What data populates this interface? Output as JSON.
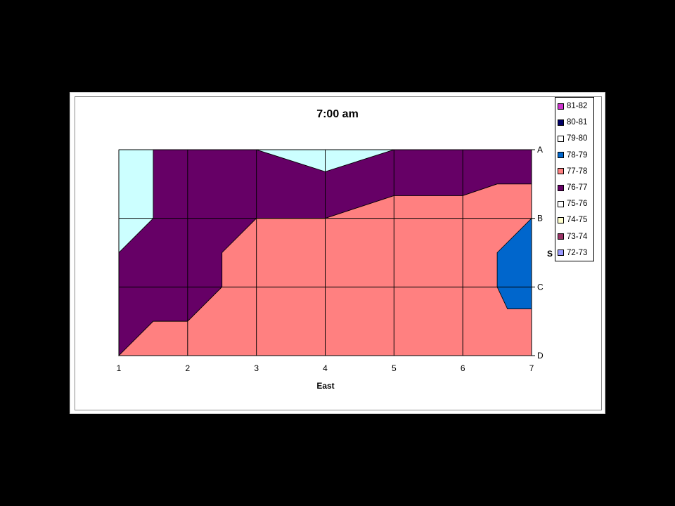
{
  "chart_data": {
    "type": "contour-area",
    "title": "7:00 am",
    "xlabel": "East",
    "ylabel": "S",
    "x_ticks": [
      "1",
      "2",
      "3",
      "4",
      "5",
      "6",
      "7"
    ],
    "y_ticks": [
      "A",
      "B",
      "C",
      "D"
    ],
    "xlim": [
      1,
      7
    ],
    "ylim": [
      "A",
      "D"
    ],
    "grid": true,
    "legend_position": "right",
    "legend": [
      {
        "label": "81-82",
        "color": "#cc33cc"
      },
      {
        "label": "80-81",
        "color": "#000066"
      },
      {
        "label": "79-80",
        "color": "#ffffff"
      },
      {
        "label": "78-79",
        "color": "#0066cc"
      },
      {
        "label": "77-78",
        "color": "#ff8080"
      },
      {
        "label": "76-77",
        "color": "#660066"
      },
      {
        "label": "75-76",
        "color": "#ffffff"
      },
      {
        "label": "74-75",
        "color": "#ffffcc"
      },
      {
        "label": "73-74",
        "color": "#993366"
      },
      {
        "label": "72-73",
        "color": "#9999ff"
      }
    ],
    "regions": [
      {
        "band": "76-77",
        "color": "#660066",
        "points": [
          [
            1,
            0.5
          ],
          [
            1.5,
            0
          ],
          [
            3,
            0
          ],
          [
            4,
            0.32
          ],
          [
            5,
            0
          ],
          [
            7,
            0
          ],
          [
            7,
            0.5
          ],
          [
            6.5,
            0.5
          ],
          [
            6,
            0.67
          ],
          [
            5,
            0.67
          ],
          [
            4,
            1
          ],
          [
            3,
            1
          ],
          [
            2.5,
            1.5
          ],
          [
            2.5,
            2
          ],
          [
            2,
            2.5
          ],
          [
            1.5,
            2.5
          ],
          [
            1,
            3
          ]
        ]
      },
      {
        "band": "75-76",
        "color": "#ccffff",
        "points": [
          [
            1,
            0
          ],
          [
            1.5,
            0
          ],
          [
            1.5,
            1
          ],
          [
            1,
            1.5
          ]
        ]
      },
      {
        "band": "75-76",
        "color": "#ccffff",
        "points": [
          [
            3,
            0
          ],
          [
            5,
            0
          ],
          [
            4,
            0.32
          ]
        ]
      },
      {
        "band": "77-78",
        "color": "#ff8080",
        "points": [
          [
            1,
            3
          ],
          [
            1.5,
            2.5
          ],
          [
            2,
            2.5
          ],
          [
            2.5,
            2
          ],
          [
            2.5,
            1.5
          ],
          [
            3,
            1
          ],
          [
            4,
            1
          ],
          [
            5,
            0.67
          ],
          [
            6,
            0.67
          ],
          [
            6.5,
            0.5
          ],
          [
            7,
            0.5
          ],
          [
            7,
            3
          ]
        ]
      },
      {
        "band": "78-79",
        "color": "#0066cc",
        "points": [
          [
            7,
            1
          ],
          [
            6.5,
            1.5
          ],
          [
            6.5,
            2
          ],
          [
            6.65,
            2.32
          ],
          [
            7,
            2.32
          ]
        ]
      }
    ]
  }
}
